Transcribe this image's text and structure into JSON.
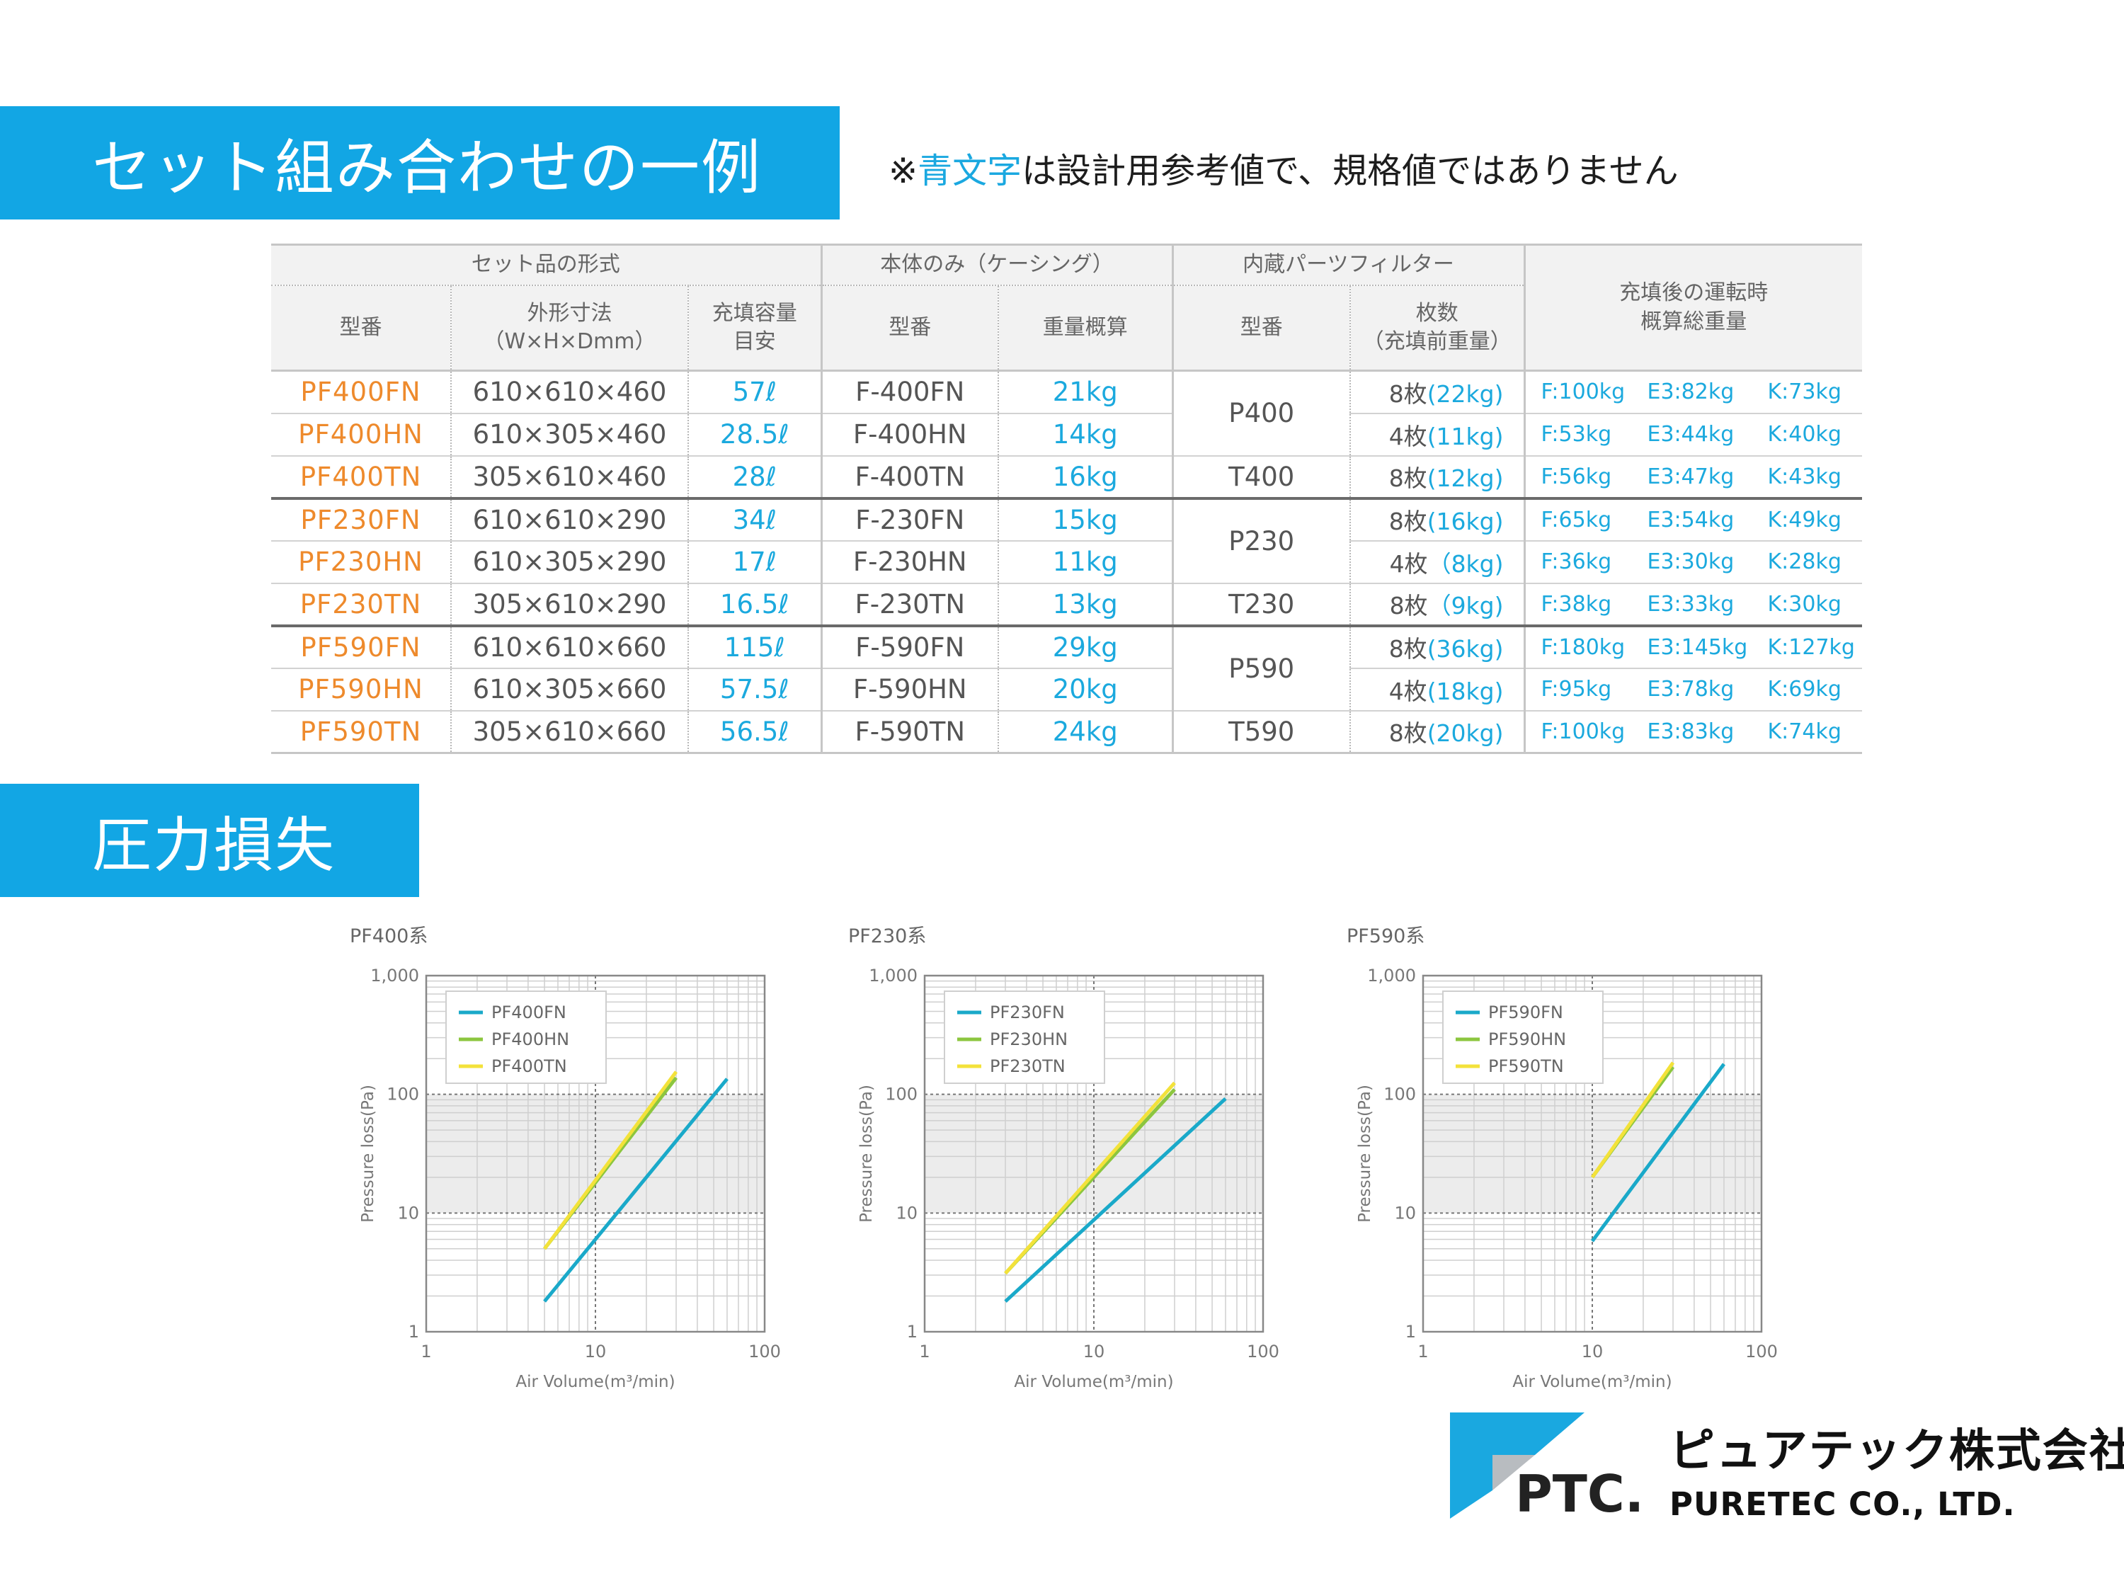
{
  "section1": {
    "title": "セット組み合わせの一例"
  },
  "note": {
    "prefix": "※",
    "highlight": "青文字",
    "suffix": "は設計用参考値で、規格値ではありません"
  },
  "table": {
    "groups": [
      "セット品の形式",
      "本体のみ（ケーシング）",
      "内蔵パーツフィルター",
      "充填後の運転時\n概算総重量"
    ],
    "cols": [
      "型番",
      "外形寸法\n（W×H×Dmm）",
      "充填容量\n目安",
      "型番",
      "重量概算",
      "型番",
      "枚数\n（充填前重量）"
    ],
    "rows": [
      {
        "model": "PF400FN",
        "dims": "610×610×460",
        "cap": "57ℓ",
        "body": "F-400FN",
        "weight": "21kg",
        "filter": "P400",
        "qty": "8枚",
        "qty_w": "(22kg)",
        "f": "F:100kg",
        "e": "E3:82kg",
        "k": "K:73kg"
      },
      {
        "model": "PF400HN",
        "dims": "610×305×460",
        "cap": "28.5ℓ",
        "body": "F-400HN",
        "weight": "14kg",
        "filter": "",
        "qty": "4枚",
        "qty_w": "(11kg)",
        "f": "F:53kg",
        "e": "E3:44kg",
        "k": "K:40kg"
      },
      {
        "model": "PF400TN",
        "dims": "305×610×460",
        "cap": "28ℓ",
        "body": "F-400TN",
        "weight": "16kg",
        "filter": "T400",
        "qty": "8枚",
        "qty_w": "(12kg)",
        "f": "F:56kg",
        "e": "E3:47kg",
        "k": "K:43kg"
      },
      {
        "model": "PF230FN",
        "dims": "610×610×290",
        "cap": "34ℓ",
        "body": "F-230FN",
        "weight": "15kg",
        "filter": "P230",
        "qty": "8枚",
        "qty_w": "(16kg)",
        "f": "F:65kg",
        "e": "E3:54kg",
        "k": "K:49kg"
      },
      {
        "model": "PF230HN",
        "dims": "610×305×290",
        "cap": "17ℓ",
        "body": "F-230HN",
        "weight": "11kg",
        "filter": "",
        "qty": "4枚",
        "qty_w": "（8kg)",
        "f": "F:36kg",
        "e": "E3:30kg",
        "k": "K:28kg"
      },
      {
        "model": "PF230TN",
        "dims": "305×610×290",
        "cap": "16.5ℓ",
        "body": "F-230TN",
        "weight": "13kg",
        "filter": "T230",
        "qty": "8枚",
        "qty_w": "（9kg)",
        "f": "F:38kg",
        "e": "E3:33kg",
        "k": "K:30kg"
      },
      {
        "model": "PF590FN",
        "dims": "610×610×660",
        "cap": "115ℓ",
        "body": "F-590FN",
        "weight": "29kg",
        "filter": "P590",
        "qty": "8枚",
        "qty_w": "(36kg)",
        "f": "F:180kg",
        "e": "E3:145kg",
        "k": "K:127kg"
      },
      {
        "model": "PF590HN",
        "dims": "610×305×660",
        "cap": "57.5ℓ",
        "body": "F-590HN",
        "weight": "20kg",
        "filter": "",
        "qty": "4枚",
        "qty_w": "(18kg)",
        "f": "F:95kg",
        "e": "E3:78kg",
        "k": "K:69kg"
      },
      {
        "model": "PF590TN",
        "dims": "305×610×660",
        "cap": "56.5ℓ",
        "body": "F-590TN",
        "weight": "24kg",
        "filter": "T590",
        "qty": "8枚",
        "qty_w": "(20kg)",
        "f": "F:100kg",
        "e": "E3:83kg",
        "k": "K:74kg"
      }
    ]
  },
  "section2": {
    "title": "圧力損失"
  },
  "colors": {
    "banner": "#12a6e4",
    "model": "#ee8a2c",
    "blue_value": "#1ba9de",
    "series_fn": "#1aa9c9",
    "series_hn": "#8cc63f",
    "series_tn": "#f3e23a"
  },
  "chart_data": [
    {
      "type": "line",
      "title": "PF400系",
      "xlabel": "Air Volume(m³/min)",
      "ylabel": "Pressure loss(Pa)",
      "xscale": "log",
      "yscale": "log",
      "xlim": [
        1,
        100
      ],
      "ylim": [
        1,
        1000
      ],
      "xticks": [
        "1",
        "10",
        "100"
      ],
      "yticks": [
        "1",
        "10",
        "100",
        "1,000"
      ],
      "grid": true,
      "legend": "top-left",
      "shaded_band": [
        10,
        100
      ],
      "series": [
        {
          "name": "PF400FN",
          "x": [
            5,
            60
          ],
          "y": [
            1.8,
            135
          ]
        },
        {
          "name": "PF400HN",
          "x": [
            5,
            30
          ],
          "y": [
            5,
            138
          ]
        },
        {
          "name": "PF400TN",
          "x": [
            5,
            30
          ],
          "y": [
            5,
            155
          ]
        }
      ]
    },
    {
      "type": "line",
      "title": "PF230系",
      "xlabel": "Air Volume(m³/min)",
      "ylabel": "Pressure loss(Pa)",
      "xscale": "log",
      "yscale": "log",
      "xlim": [
        1,
        100
      ],
      "ylim": [
        1,
        1000
      ],
      "xticks": [
        "1",
        "10",
        "100"
      ],
      "yticks": [
        "1",
        "10",
        "100",
        "1,000"
      ],
      "grid": true,
      "legend": "top-left",
      "shaded_band": [
        10,
        100
      ],
      "series": [
        {
          "name": "PF230FN",
          "x": [
            3,
            60
          ],
          "y": [
            1.8,
            92
          ]
        },
        {
          "name": "PF230HN",
          "x": [
            3,
            30
          ],
          "y": [
            3.1,
            110
          ]
        },
        {
          "name": "PF230TN",
          "x": [
            3,
            30
          ],
          "y": [
            3.1,
            125
          ]
        }
      ]
    },
    {
      "type": "line",
      "title": "PF590系",
      "xlabel": "Air Volume(m³/min)",
      "ylabel": "Pressure loss(Pa)",
      "xscale": "log",
      "yscale": "log",
      "xlim": [
        1,
        100
      ],
      "ylim": [
        1,
        1000
      ],
      "xticks": [
        "1",
        "10",
        "100"
      ],
      "yticks": [
        "1",
        "10",
        "100",
        "1,000"
      ],
      "grid": true,
      "legend": "top-left",
      "shaded_band": [
        10,
        100
      ],
      "series": [
        {
          "name": "PF590FN",
          "x": [
            10,
            60
          ],
          "y": [
            5.8,
            180
          ]
        },
        {
          "name": "PF590HN",
          "x": [
            10,
            30
          ],
          "y": [
            20,
            170
          ]
        },
        {
          "name": "PF590TN",
          "x": [
            10,
            30
          ],
          "y": [
            20,
            185
          ]
        }
      ]
    }
  ],
  "company": {
    "logo_text": "PTC.",
    "name_jp": "ピュアテック株式会社",
    "name_en": "PURETEC CO., LTD."
  }
}
